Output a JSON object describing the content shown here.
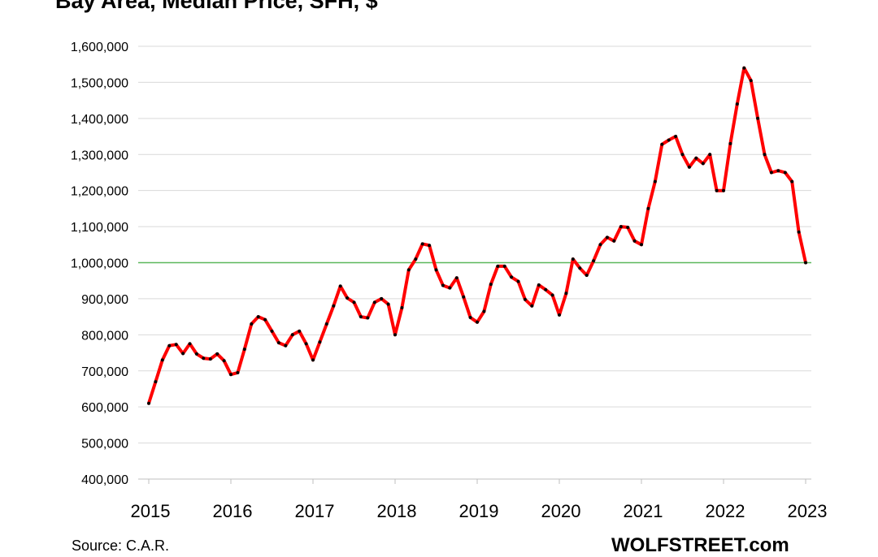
{
  "chart_data": {
    "type": "line",
    "title": "Bay Area, Median Price, SFH, $",
    "xlabel": "",
    "ylabel": "",
    "ylim": [
      400000,
      1600000
    ],
    "yticks": [
      400000,
      500000,
      600000,
      700000,
      800000,
      900000,
      1000000,
      1100000,
      1200000,
      1300000,
      1400000,
      1500000,
      1600000
    ],
    "ytick_labels": [
      "400,000",
      "500,000",
      "600,000",
      "700,000",
      "800,000",
      "900,000",
      "1,000,000",
      "1,100,000",
      "1,200,000",
      "1,300,000",
      "1,400,000",
      "1,500,000",
      "1,600,000"
    ],
    "xticks": [
      "2015",
      "2016",
      "2017",
      "2018",
      "2019",
      "2020",
      "2021",
      "2022",
      "2023"
    ],
    "grid": true,
    "reference_line": {
      "value": 1000000,
      "color": "#5cb85c"
    },
    "series": [
      {
        "color": "#ff0000",
        "marker_color": "#000000",
        "x": [
          "2015-01",
          "2015-02",
          "2015-03",
          "2015-04",
          "2015-05",
          "2015-06",
          "2015-07",
          "2015-08",
          "2015-09",
          "2015-10",
          "2015-11",
          "2015-12",
          "2016-01",
          "2016-02",
          "2016-03",
          "2016-04",
          "2016-05",
          "2016-06",
          "2016-07",
          "2016-08",
          "2016-09",
          "2016-10",
          "2016-11",
          "2016-12",
          "2017-01",
          "2017-02",
          "2017-03",
          "2017-04",
          "2017-05",
          "2017-06",
          "2017-07",
          "2017-08",
          "2017-09",
          "2017-10",
          "2017-11",
          "2017-12",
          "2018-01",
          "2018-02",
          "2018-03",
          "2018-04",
          "2018-05",
          "2018-06",
          "2018-07",
          "2018-08",
          "2018-09",
          "2018-10",
          "2018-11",
          "2018-12",
          "2019-01",
          "2019-02",
          "2019-03",
          "2019-04",
          "2019-05",
          "2019-06",
          "2019-07",
          "2019-08",
          "2019-09",
          "2019-10",
          "2019-11",
          "2019-12",
          "2020-01",
          "2020-02",
          "2020-03",
          "2020-04",
          "2020-05",
          "2020-06",
          "2020-07",
          "2020-08",
          "2020-09",
          "2020-10",
          "2020-11",
          "2020-12",
          "2021-01",
          "2021-02",
          "2021-03",
          "2021-04",
          "2021-05",
          "2021-06",
          "2021-07",
          "2021-08",
          "2021-09",
          "2021-10",
          "2021-11",
          "2021-12",
          "2022-01",
          "2022-02",
          "2022-03",
          "2022-04",
          "2022-05",
          "2022-06",
          "2022-07",
          "2022-08",
          "2022-09",
          "2022-10",
          "2022-11",
          "2022-12",
          "2023-01"
        ],
        "values": [
          610000,
          670000,
          730000,
          770000,
          773000,
          748000,
          775000,
          747000,
          735000,
          733000,
          747000,
          728000,
          690000,
          695000,
          760000,
          830000,
          850000,
          842000,
          810000,
          778000,
          770000,
          800000,
          810000,
          775000,
          730000,
          780000,
          830000,
          880000,
          935000,
          902000,
          890000,
          850000,
          847000,
          890000,
          900000,
          885000,
          800000,
          875000,
          980000,
          1010000,
          1052000,
          1048000,
          980000,
          937000,
          930000,
          958000,
          905000,
          848000,
          835000,
          865000,
          940000,
          990000,
          990000,
          960000,
          948000,
          898000,
          880000,
          938000,
          925000,
          910000,
          855000,
          915000,
          1010000,
          985000,
          965000,
          1005000,
          1050000,
          1070000,
          1060000,
          1100000,
          1098000,
          1060000,
          1050000,
          1150000,
          1225000,
          1328000,
          1340000,
          1350000,
          1300000,
          1265000,
          1290000,
          1275000,
          1300000,
          1200000,
          1200000,
          1330000,
          1440000,
          1540000,
          1505000,
          1400000,
          1300000,
          1250000,
          1255000,
          1250000,
          1225000,
          1085000,
          1000000
        ]
      }
    ]
  },
  "footer": {
    "source": "Source: C.A.R.",
    "watermark": "WOLFSTREET.com"
  }
}
